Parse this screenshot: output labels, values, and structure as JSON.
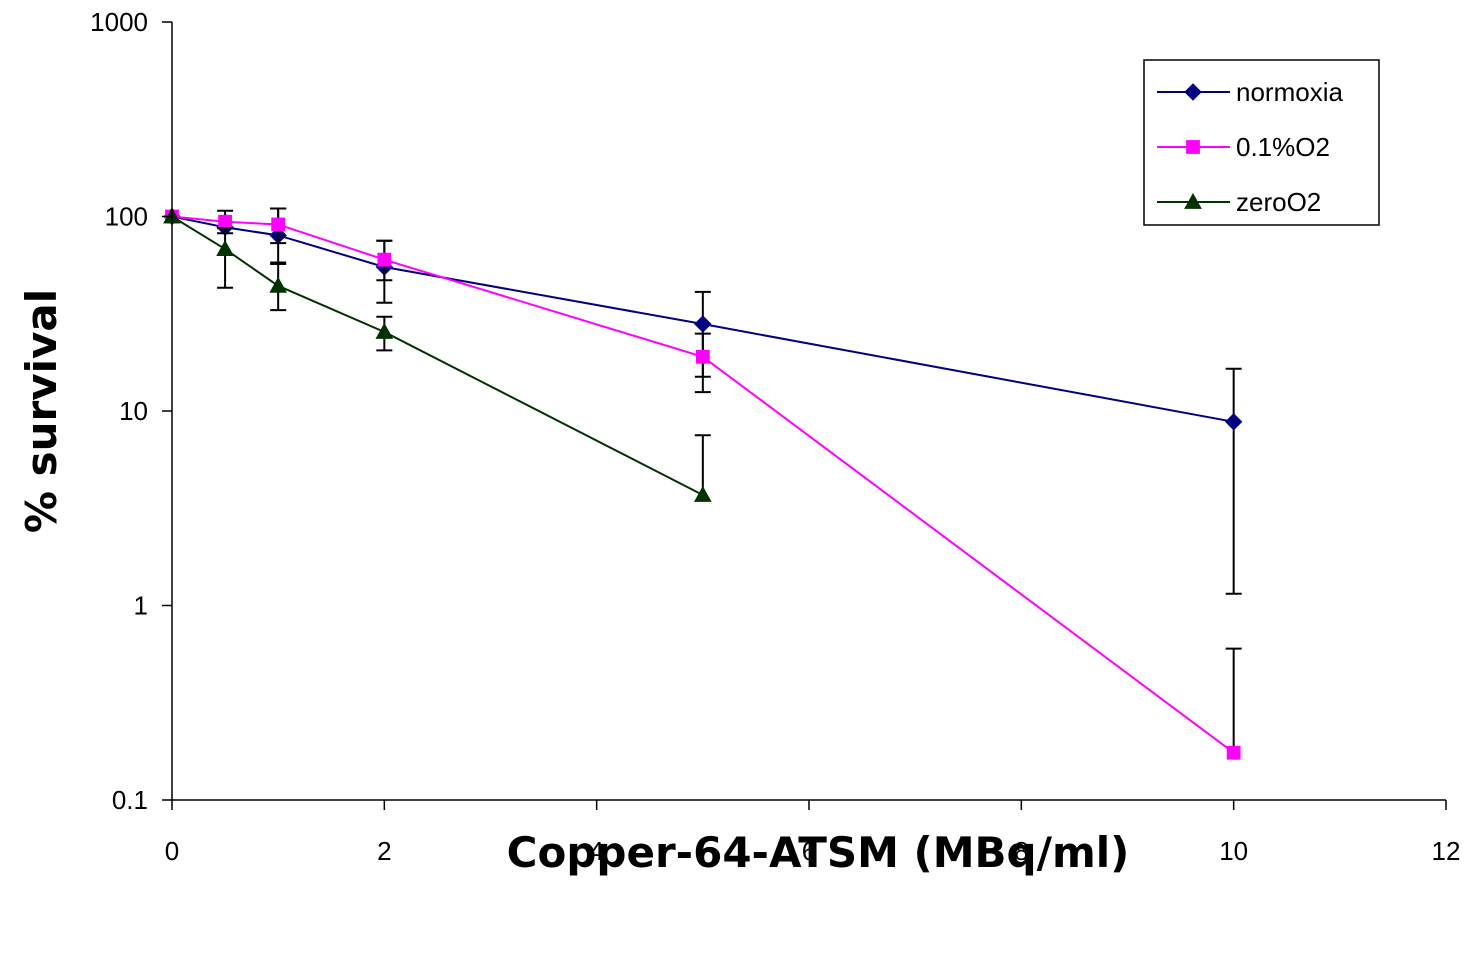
{
  "chart_data": {
    "type": "line",
    "xlabel": "Copper-64-ATSM (MBq/ml)",
    "ylabel": "% survival",
    "xlim": [
      0,
      12
    ],
    "xticks": [
      0,
      2,
      4,
      6,
      8,
      10,
      12
    ],
    "xtick_labels": [
      "0",
      "2",
      "4",
      "6",
      "8",
      "10",
      "12"
    ],
    "yscale": "log",
    "ylim": [
      0.1,
      1000
    ],
    "yticks": [
      0.1,
      1,
      10,
      100,
      1000
    ],
    "ytick_labels": [
      "0.1",
      "1",
      "10",
      "100",
      "1000"
    ],
    "grid": false,
    "legend_position": "top-right",
    "series": [
      {
        "name": "normoxia",
        "color": "#000080",
        "marker": "diamond",
        "points": [
          {
            "x": 0,
            "y": 100
          },
          {
            "x": 0.5,
            "y": 88
          },
          {
            "x": 1,
            "y": 80,
            "err_hi": 110,
            "err_lo": 57
          },
          {
            "x": 2,
            "y": 55,
            "err_hi": 75,
            "err_lo": 36
          },
          {
            "x": 5,
            "y": 28,
            "err_hi": 41,
            "err_lo": 15
          },
          {
            "x": 10,
            "y": 8.8,
            "err_hi": 16.5,
            "err_lo": 1.15
          }
        ]
      },
      {
        "name": "0.1%O2",
        "color": "#FF00FF",
        "marker": "square",
        "points": [
          {
            "x": 0,
            "y": 100
          },
          {
            "x": 0.5,
            "y": 94,
            "err_hi": 107,
            "err_lo": 82
          },
          {
            "x": 1,
            "y": 91,
            "err_hi": 110,
            "err_lo": 73
          },
          {
            "x": 2,
            "y": 60,
            "err_hi": 75,
            "err_lo": 47
          },
          {
            "x": 5,
            "y": 19,
            "err_hi": 25,
            "err_lo": 12.5
          },
          {
            "x": 10,
            "y": 0.175,
            "err_hi": 0.6
          }
        ]
      },
      {
        "name": "zeroO2",
        "color": "#003300",
        "marker": "triangle",
        "points": [
          {
            "x": 0,
            "y": 100
          },
          {
            "x": 0.5,
            "y": 68,
            "err_hi": 87,
            "err_lo": 43
          },
          {
            "x": 1,
            "y": 44,
            "err_hi": 58,
            "err_lo": 33
          },
          {
            "x": 2,
            "y": 25.5,
            "err_hi": 30.5,
            "err_lo": 20.5
          },
          {
            "x": 5,
            "y": 3.7,
            "err_hi": 7.5
          }
        ]
      }
    ]
  }
}
